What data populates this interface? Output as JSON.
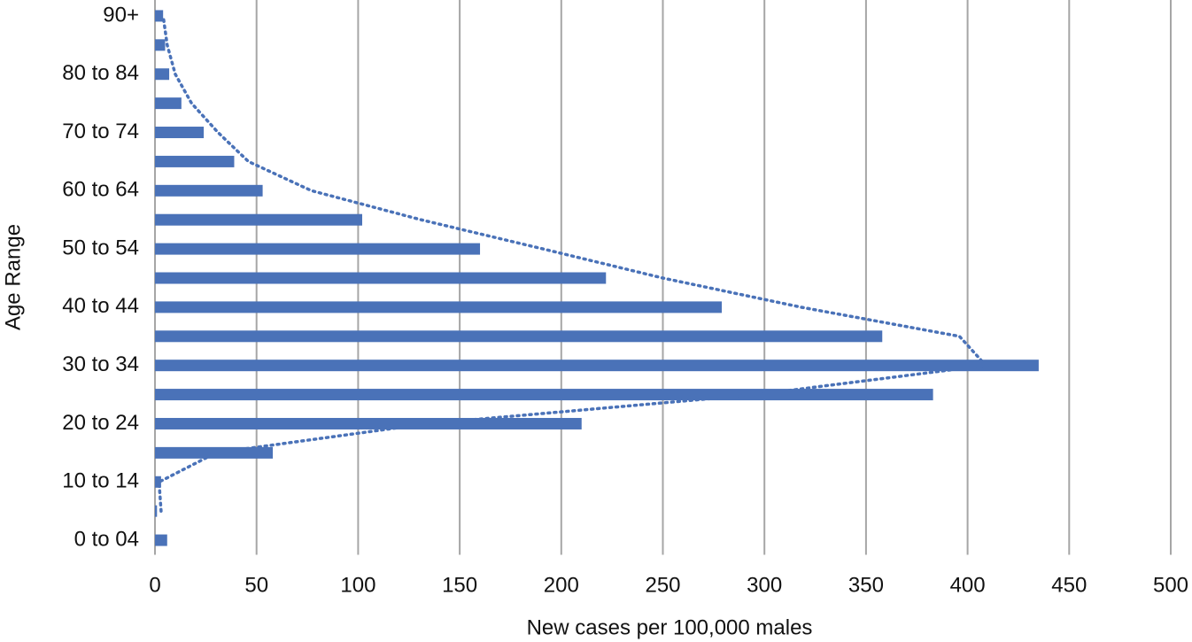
{
  "chart_data": {
    "type": "hbar",
    "xlabel": "New cases per 100,000 males",
    "ylabel": "Age Range",
    "categories": [
      "0 to 04",
      null,
      "10 to 14",
      null,
      "20 to 24",
      null,
      "30 to 34",
      null,
      "40 to 44",
      null,
      "50 to 54",
      null,
      "60 to 64",
      null,
      "70 to 74",
      null,
      "80 to 84",
      null,
      "90+"
    ],
    "values": [
      6,
      1,
      3,
      58,
      210,
      383,
      435,
      358,
      279,
      222,
      160,
      102,
      53,
      39,
      24,
      13,
      7,
      5,
      4
    ],
    "color": "#4a72b8",
    "trendline": {
      "color": "#4a72b8",
      "values": [
        null,
        3,
        2,
        30,
        134,
        296,
        409,
        396,
        318,
        250,
        191,
        131,
        77,
        46,
        31,
        18,
        10,
        6,
        4
      ]
    },
    "xlim": [
      0,
      500
    ],
    "xticks": [
      0,
      50,
      100,
      150,
      200,
      250,
      300,
      350,
      400,
      450,
      500
    ],
    "grid": true
  }
}
